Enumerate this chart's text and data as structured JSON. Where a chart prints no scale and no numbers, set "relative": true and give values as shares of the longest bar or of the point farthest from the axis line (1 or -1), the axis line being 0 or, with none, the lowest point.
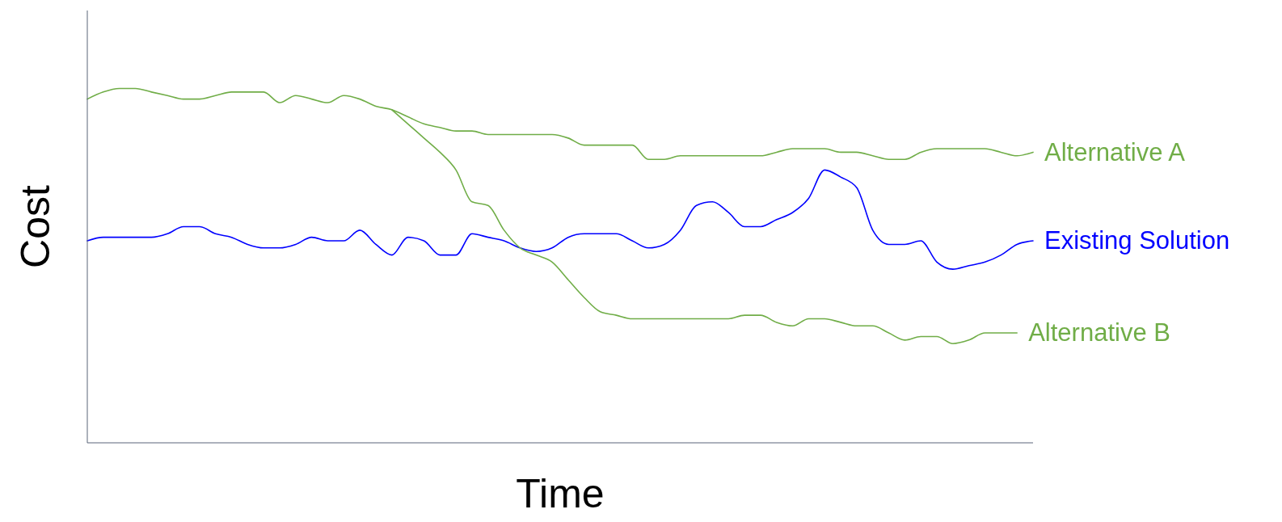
{
  "chart_data": {
    "type": "line",
    "relative": true,
    "xlabel": "Time",
    "ylabel": "Cost",
    "legend": false,
    "grid": false,
    "marker": "none",
    "line_style": "solid",
    "categories": [
      null,
      null,
      null,
      null,
      null,
      null,
      null,
      null,
      null,
      null,
      null,
      null,
      null,
      null,
      null,
      null,
      null,
      null,
      null,
      null,
      null,
      null,
      null,
      null,
      null,
      null,
      null,
      null,
      null,
      null,
      null,
      null,
      null,
      null,
      null,
      null,
      null,
      null,
      null,
      null,
      null,
      null,
      null,
      null,
      null,
      null,
      null,
      null,
      null,
      null,
      null,
      null,
      null,
      null,
      null,
      null,
      null,
      null,
      null,
      null
    ],
    "series": [
      {
        "name": "Alternative A",
        "color": "#70ad47",
        "values": [
          0.97,
          0.99,
          1.0,
          1.0,
          0.99,
          0.98,
          0.97,
          0.97,
          0.98,
          0.99,
          0.99,
          0.99,
          0.96,
          0.98,
          0.97,
          0.96,
          0.98,
          0.97,
          0.95,
          0.94,
          0.92,
          0.9,
          0.89,
          0.88,
          0.88,
          0.87,
          0.87,
          0.87,
          0.87,
          0.87,
          0.86,
          0.84,
          0.84,
          0.84,
          0.84,
          0.8,
          0.8,
          0.81,
          0.81,
          0.81,
          0.81,
          0.81,
          0.81,
          0.82,
          0.83,
          0.83,
          0.83,
          0.82,
          0.82,
          0.81,
          0.8,
          0.8,
          0.82,
          0.83,
          0.83,
          0.83,
          0.83,
          0.82,
          0.81,
          0.82
        ]
      },
      {
        "name": "Existing Solution",
        "color": "#0000ff",
        "values": [
          0.57,
          0.58,
          0.58,
          0.58,
          0.58,
          0.59,
          0.61,
          0.61,
          0.59,
          0.58,
          0.56,
          0.55,
          0.55,
          0.56,
          0.58,
          0.57,
          0.57,
          0.6,
          0.56,
          0.53,
          0.58,
          0.57,
          0.53,
          0.53,
          0.59,
          0.58,
          0.57,
          0.55,
          0.54,
          0.55,
          0.58,
          0.59,
          0.59,
          0.59,
          0.57,
          0.55,
          0.56,
          0.6,
          0.67,
          0.68,
          0.65,
          0.61,
          0.61,
          0.63,
          0.65,
          0.69,
          0.77,
          0.75,
          0.72,
          0.6,
          0.56,
          0.56,
          0.57,
          0.51,
          0.49,
          0.5,
          0.51,
          0.53,
          0.56,
          0.57
        ]
      },
      {
        "name": "Alternative B",
        "color": "#70ad47",
        "values": [
          null,
          null,
          null,
          null,
          null,
          null,
          null,
          null,
          null,
          null,
          null,
          null,
          null,
          null,
          null,
          null,
          null,
          null,
          null,
          0.94,
          0.9,
          0.86,
          0.82,
          0.77,
          0.68,
          0.67,
          0.6,
          0.55,
          0.53,
          0.51,
          0.46,
          0.41,
          0.37,
          0.36,
          0.35,
          0.35,
          0.35,
          0.35,
          0.35,
          0.35,
          0.35,
          0.36,
          0.36,
          0.34,
          0.33,
          0.35,
          0.35,
          0.34,
          0.33,
          0.33,
          0.31,
          0.29,
          0.3,
          0.3,
          0.28,
          0.29,
          0.31,
          0.31,
          0.31,
          null
        ]
      }
    ]
  }
}
